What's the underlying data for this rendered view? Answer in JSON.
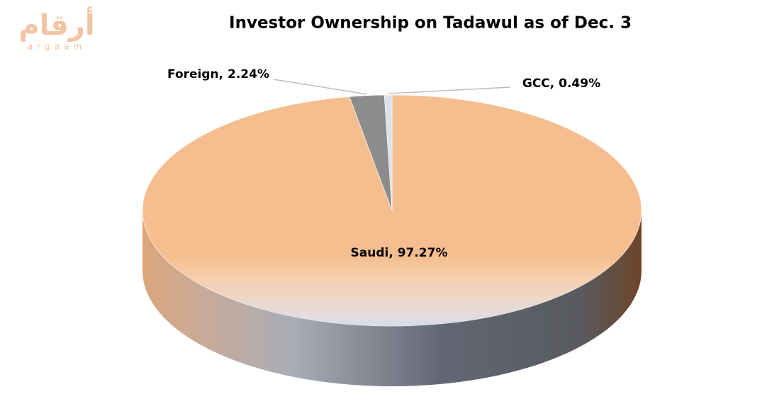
{
  "logo": {
    "arabic": "أرقام",
    "latin": "argaam"
  },
  "chart_data": {
    "type": "pie3d",
    "title": "Investor Ownership on Tadawul as of Dec. 3",
    "values": [
      97.27,
      2.24,
      0.49
    ],
    "value_labels": [
      "Saudi, 97.27%",
      "Foreign, 2.24%",
      "GCC, 0.49%"
    ],
    "colors": [
      "#f5be8f",
      "#8c8c8c",
      "#dde1ea"
    ],
    "start_angle": 0,
    "direction": "clockwise"
  }
}
